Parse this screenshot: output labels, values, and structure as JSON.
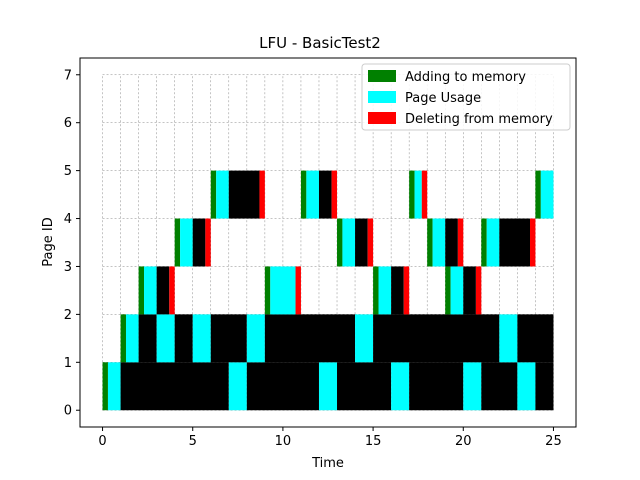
{
  "chart_data": {
    "type": "bar",
    "title": "LFU - BasicTest2",
    "xlabel": "Time",
    "ylabel": "Page ID",
    "xlim": [
      -1.25,
      26.25
    ],
    "ylim": [
      -0.35,
      7.35
    ],
    "xticks": [
      0,
      5,
      10,
      15,
      20,
      25
    ],
    "yticks": [
      0,
      1,
      2,
      3,
      4,
      5,
      6,
      7
    ],
    "grid": true,
    "legend_position": "top-right",
    "legend": [
      {
        "key": "add",
        "label": "Adding to memory",
        "color": "#008000"
      },
      {
        "key": "use",
        "label": "Page Usage",
        "color": "#00ffff"
      },
      {
        "key": "del",
        "label": "Deleting from memory",
        "color": "#ff0000"
      }
    ],
    "colors": {
      "add": "#008000",
      "use": "#00ffff",
      "del": "#ff0000",
      "resident": "#000000"
    },
    "pages": [
      {
        "page": 0,
        "segments": [
          {
            "start": 0,
            "end": 0.3,
            "kind": "add"
          },
          {
            "start": 0.3,
            "end": 1,
            "kind": "use"
          },
          {
            "start": 1,
            "end": 7,
            "kind": "resident"
          },
          {
            "start": 7,
            "end": 8,
            "kind": "use"
          },
          {
            "start": 8,
            "end": 12,
            "kind": "resident"
          },
          {
            "start": 12,
            "end": 13,
            "kind": "use"
          },
          {
            "start": 13,
            "end": 16,
            "kind": "resident"
          },
          {
            "start": 16,
            "end": 17,
            "kind": "use"
          },
          {
            "start": 17,
            "end": 20,
            "kind": "resident"
          },
          {
            "start": 20,
            "end": 21,
            "kind": "use"
          },
          {
            "start": 21,
            "end": 23,
            "kind": "resident"
          },
          {
            "start": 23,
            "end": 24,
            "kind": "use"
          },
          {
            "start": 24,
            "end": 25,
            "kind": "resident"
          }
        ]
      },
      {
        "page": 1,
        "segments": [
          {
            "start": 1,
            "end": 1.3,
            "kind": "add"
          },
          {
            "start": 1.3,
            "end": 2,
            "kind": "use"
          },
          {
            "start": 2,
            "end": 3,
            "kind": "resident"
          },
          {
            "start": 3,
            "end": 4,
            "kind": "use"
          },
          {
            "start": 4,
            "end": 5,
            "kind": "resident"
          },
          {
            "start": 5,
            "end": 6,
            "kind": "use"
          },
          {
            "start": 6,
            "end": 8,
            "kind": "resident"
          },
          {
            "start": 8,
            "end": 9,
            "kind": "use"
          },
          {
            "start": 9,
            "end": 14,
            "kind": "resident"
          },
          {
            "start": 14,
            "end": 15,
            "kind": "use"
          },
          {
            "start": 15,
            "end": 22,
            "kind": "resident"
          },
          {
            "start": 22,
            "end": 23,
            "kind": "use"
          },
          {
            "start": 23,
            "end": 25,
            "kind": "resident"
          }
        ]
      },
      {
        "page": 2,
        "segments": [
          {
            "start": 2,
            "end": 2.3,
            "kind": "add"
          },
          {
            "start": 2.3,
            "end": 3,
            "kind": "use"
          },
          {
            "start": 3,
            "end": 3.7,
            "kind": "resident"
          },
          {
            "start": 3.7,
            "end": 4,
            "kind": "del"
          },
          {
            "start": 9,
            "end": 9.3,
            "kind": "add"
          },
          {
            "start": 9.3,
            "end": 10.7,
            "kind": "use"
          },
          {
            "start": 10.7,
            "end": 11,
            "kind": "del"
          },
          {
            "start": 15,
            "end": 15.3,
            "kind": "add"
          },
          {
            "start": 15.3,
            "end": 16,
            "kind": "use"
          },
          {
            "start": 16,
            "end": 16.7,
            "kind": "resident"
          },
          {
            "start": 16.7,
            "end": 17,
            "kind": "del"
          },
          {
            "start": 19,
            "end": 19.3,
            "kind": "add"
          },
          {
            "start": 19.3,
            "end": 20,
            "kind": "use"
          },
          {
            "start": 20,
            "end": 20.7,
            "kind": "resident"
          },
          {
            "start": 20.7,
            "end": 21,
            "kind": "del"
          }
        ]
      },
      {
        "page": 3,
        "segments": [
          {
            "start": 4,
            "end": 4.3,
            "kind": "add"
          },
          {
            "start": 4.3,
            "end": 5,
            "kind": "use"
          },
          {
            "start": 5,
            "end": 5.7,
            "kind": "resident"
          },
          {
            "start": 5.7,
            "end": 6,
            "kind": "del"
          },
          {
            "start": 13,
            "end": 13.3,
            "kind": "add"
          },
          {
            "start": 13.3,
            "end": 14,
            "kind": "use"
          },
          {
            "start": 14,
            "end": 14.7,
            "kind": "resident"
          },
          {
            "start": 14.7,
            "end": 15,
            "kind": "del"
          },
          {
            "start": 18,
            "end": 18.3,
            "kind": "add"
          },
          {
            "start": 18.3,
            "end": 19,
            "kind": "use"
          },
          {
            "start": 19,
            "end": 19.7,
            "kind": "resident"
          },
          {
            "start": 19.7,
            "end": 20,
            "kind": "del"
          },
          {
            "start": 21,
            "end": 21.3,
            "kind": "add"
          },
          {
            "start": 21.3,
            "end": 22,
            "kind": "use"
          },
          {
            "start": 22,
            "end": 23.7,
            "kind": "resident"
          },
          {
            "start": 23.7,
            "end": 24,
            "kind": "del"
          }
        ]
      },
      {
        "page": 4,
        "segments": [
          {
            "start": 6,
            "end": 6.3,
            "kind": "add"
          },
          {
            "start": 6.3,
            "end": 7,
            "kind": "use"
          },
          {
            "start": 7,
            "end": 8.7,
            "kind": "resident"
          },
          {
            "start": 8.7,
            "end": 9,
            "kind": "del"
          },
          {
            "start": 11,
            "end": 11.3,
            "kind": "add"
          },
          {
            "start": 11.3,
            "end": 12,
            "kind": "use"
          },
          {
            "start": 12,
            "end": 12.7,
            "kind": "resident"
          },
          {
            "start": 12.7,
            "end": 13,
            "kind": "del"
          },
          {
            "start": 17,
            "end": 17.3,
            "kind": "add"
          },
          {
            "start": 17.3,
            "end": 17.7,
            "kind": "use"
          },
          {
            "start": 17.7,
            "end": 18,
            "kind": "del"
          },
          {
            "start": 24,
            "end": 24.3,
            "kind": "add"
          },
          {
            "start": 24.3,
            "end": 25,
            "kind": "use"
          }
        ]
      }
    ]
  }
}
